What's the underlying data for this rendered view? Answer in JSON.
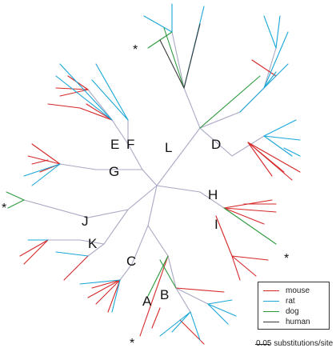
{
  "figure": {
    "clade_labels": [
      "A",
      "B",
      "C",
      "D",
      "E",
      "F",
      "G",
      "H",
      "I",
      "J",
      "K",
      "L"
    ],
    "star_marker": "*",
    "legend": {
      "entries": [
        {
          "label": "mouse",
          "color": "#d62728"
        },
        {
          "label": "rat",
          "color": "#1aa7d8"
        },
        {
          "label": "dog",
          "color": "#2e9a3e"
        },
        {
          "label": "human",
          "color": "#3a3a3a"
        }
      ]
    },
    "scale_bar": {
      "label": "0.05 substitutions/site",
      "value": 0.05
    },
    "colors": {
      "internal_branch": "#a9a9c4"
    }
  }
}
